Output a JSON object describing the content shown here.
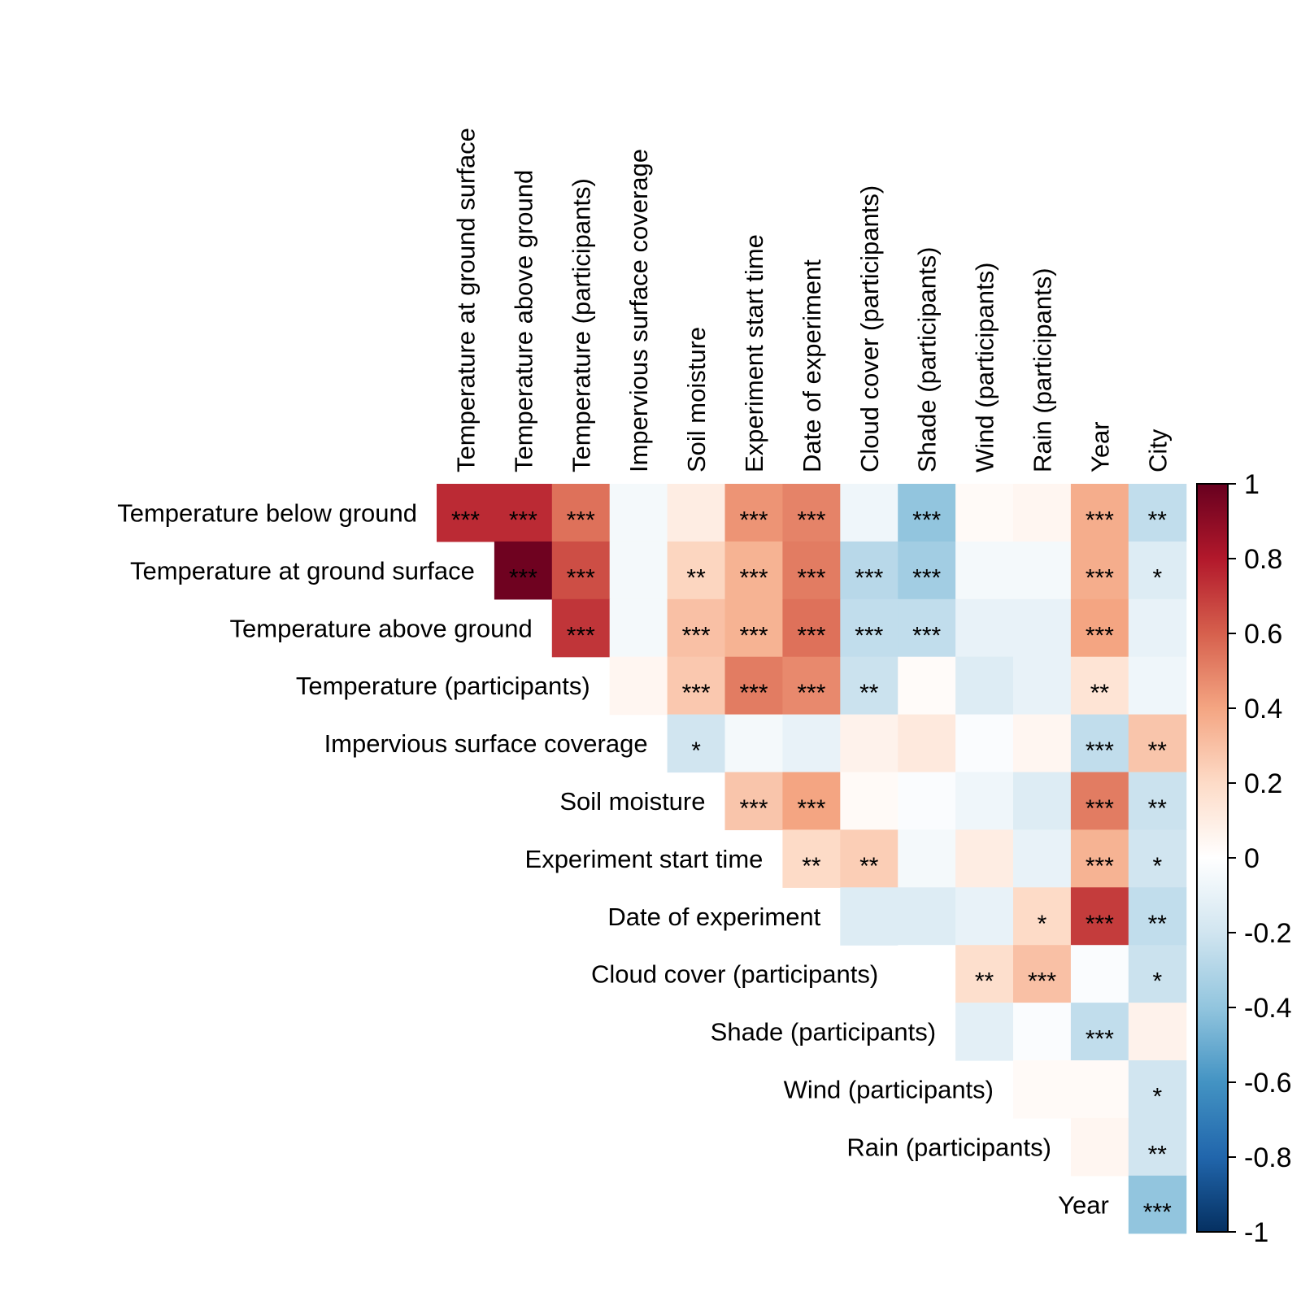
{
  "chart_data": {
    "type": "heatmap",
    "title": "",
    "row_labels": [
      "Temperature below ground",
      "Temperature at ground surface",
      "Temperature above ground",
      "Temperature (participants)",
      "Impervious surface coverage",
      "Soil moisture",
      "Experiment start time",
      "Date of experiment",
      "Cloud cover (participants)",
      "Shade (participants)",
      "Wind (participants)",
      "Rain (participants)",
      "Year"
    ],
    "col_labels": [
      "Temperature at ground surface",
      "Temperature above ground",
      "Temperature (participants)",
      "Impervious surface coverage",
      "Soil moisture",
      "Experiment start time",
      "Date of experiment",
      "Cloud cover (participants)",
      "Shade (participants)",
      "Wind (participants)",
      "Rain (participants)",
      "Year",
      "City"
    ],
    "values": [
      [
        0.75,
        0.75,
        0.55,
        -0.05,
        0.1,
        0.45,
        0.5,
        -0.07,
        -0.4,
        0.03,
        0.05,
        0.37,
        -0.25
      ],
      [
        null,
        0.98,
        0.65,
        -0.05,
        0.22,
        0.35,
        0.52,
        -0.28,
        -0.35,
        -0.05,
        -0.05,
        0.37,
        -0.15
      ],
      [
        null,
        null,
        0.72,
        -0.05,
        0.3,
        0.35,
        0.55,
        -0.25,
        -0.25,
        -0.1,
        -0.1,
        0.4,
        -0.1
      ],
      [
        null,
        null,
        null,
        0.05,
        0.27,
        0.52,
        0.48,
        -0.22,
        0.02,
        -0.15,
        -0.1,
        0.15,
        -0.07
      ],
      [
        null,
        null,
        null,
        null,
        -0.2,
        -0.05,
        -0.1,
        0.07,
        0.12,
        -0.02,
        0.05,
        -0.25,
        0.28
      ],
      [
        null,
        null,
        null,
        null,
        null,
        0.28,
        0.4,
        0.03,
        -0.02,
        -0.07,
        -0.15,
        0.52,
        -0.22
      ],
      [
        null,
        null,
        null,
        null,
        null,
        null,
        0.2,
        0.25,
        -0.05,
        0.1,
        -0.1,
        0.35,
        -0.2
      ],
      [
        null,
        null,
        null,
        null,
        null,
        null,
        null,
        -0.15,
        -0.15,
        -0.1,
        0.2,
        0.7,
        -0.25
      ],
      [
        null,
        null,
        null,
        null,
        null,
        null,
        null,
        null,
        0.0,
        0.18,
        0.3,
        -0.02,
        -0.22
      ],
      [
        null,
        null,
        null,
        null,
        null,
        null,
        null,
        null,
        null,
        -0.12,
        -0.02,
        -0.25,
        0.07
      ],
      [
        null,
        null,
        null,
        null,
        null,
        null,
        null,
        null,
        null,
        null,
        0.03,
        0.03,
        -0.2
      ],
      [
        null,
        null,
        null,
        null,
        null,
        null,
        null,
        null,
        null,
        null,
        null,
        0.05,
        -0.2
      ],
      [
        null,
        null,
        null,
        null,
        null,
        null,
        null,
        null,
        null,
        null,
        null,
        null,
        -0.4
      ]
    ],
    "significance": [
      [
        "***",
        "***",
        "***",
        "",
        "",
        "***",
        "***",
        "",
        "***",
        "",
        "",
        "***",
        "**"
      ],
      [
        null,
        "***",
        "***",
        "",
        "**",
        "***",
        "***",
        "***",
        "***",
        "",
        "",
        "***",
        "*"
      ],
      [
        null,
        null,
        "***",
        "",
        "***",
        "***",
        "***",
        "***",
        "***",
        "",
        "",
        "***",
        ""
      ],
      [
        null,
        null,
        null,
        "",
        "***",
        "***",
        "***",
        "**",
        "",
        "",
        "",
        "**",
        ""
      ],
      [
        null,
        null,
        null,
        null,
        "*",
        "",
        "",
        "",
        "",
        "",
        "",
        "***",
        "**"
      ],
      [
        null,
        null,
        null,
        null,
        null,
        "***",
        "***",
        "",
        "",
        "",
        "",
        "***",
        "**"
      ],
      [
        null,
        null,
        null,
        null,
        null,
        null,
        "**",
        "**",
        "",
        "",
        "",
        "***",
        "*"
      ],
      [
        null,
        null,
        null,
        null,
        null,
        null,
        null,
        "",
        "",
        "",
        "*",
        "***",
        "**"
      ],
      [
        null,
        null,
        null,
        null,
        null,
        null,
        null,
        null,
        "",
        "**",
        "***",
        "",
        "*"
      ],
      [
        null,
        null,
        null,
        null,
        null,
        null,
        null,
        null,
        null,
        "",
        "",
        "***",
        ""
      ],
      [
        null,
        null,
        null,
        null,
        null,
        null,
        null,
        null,
        null,
        null,
        "",
        "",
        "*"
      ],
      [
        null,
        null,
        null,
        null,
        null,
        null,
        null,
        null,
        null,
        null,
        null,
        "",
        "**"
      ],
      [
        null,
        null,
        null,
        null,
        null,
        null,
        null,
        null,
        null,
        null,
        null,
        null,
        "***"
      ]
    ],
    "color_scale": {
      "range": [
        -1,
        1
      ],
      "ticks": [
        "1",
        "0.8",
        "0.6",
        "0.4",
        "0.2",
        "0",
        "-0.2",
        "-0.4",
        "-0.6",
        "-0.8",
        "-1"
      ],
      "colors": [
        "#67001f",
        "#b2182b",
        "#d6604d",
        "#f4a582",
        "#fddbc7",
        "#ffffff",
        "#d1e5f0",
        "#92c5de",
        "#4393c3",
        "#2166ac",
        "#053061"
      ],
      "legend_position": "right"
    }
  }
}
